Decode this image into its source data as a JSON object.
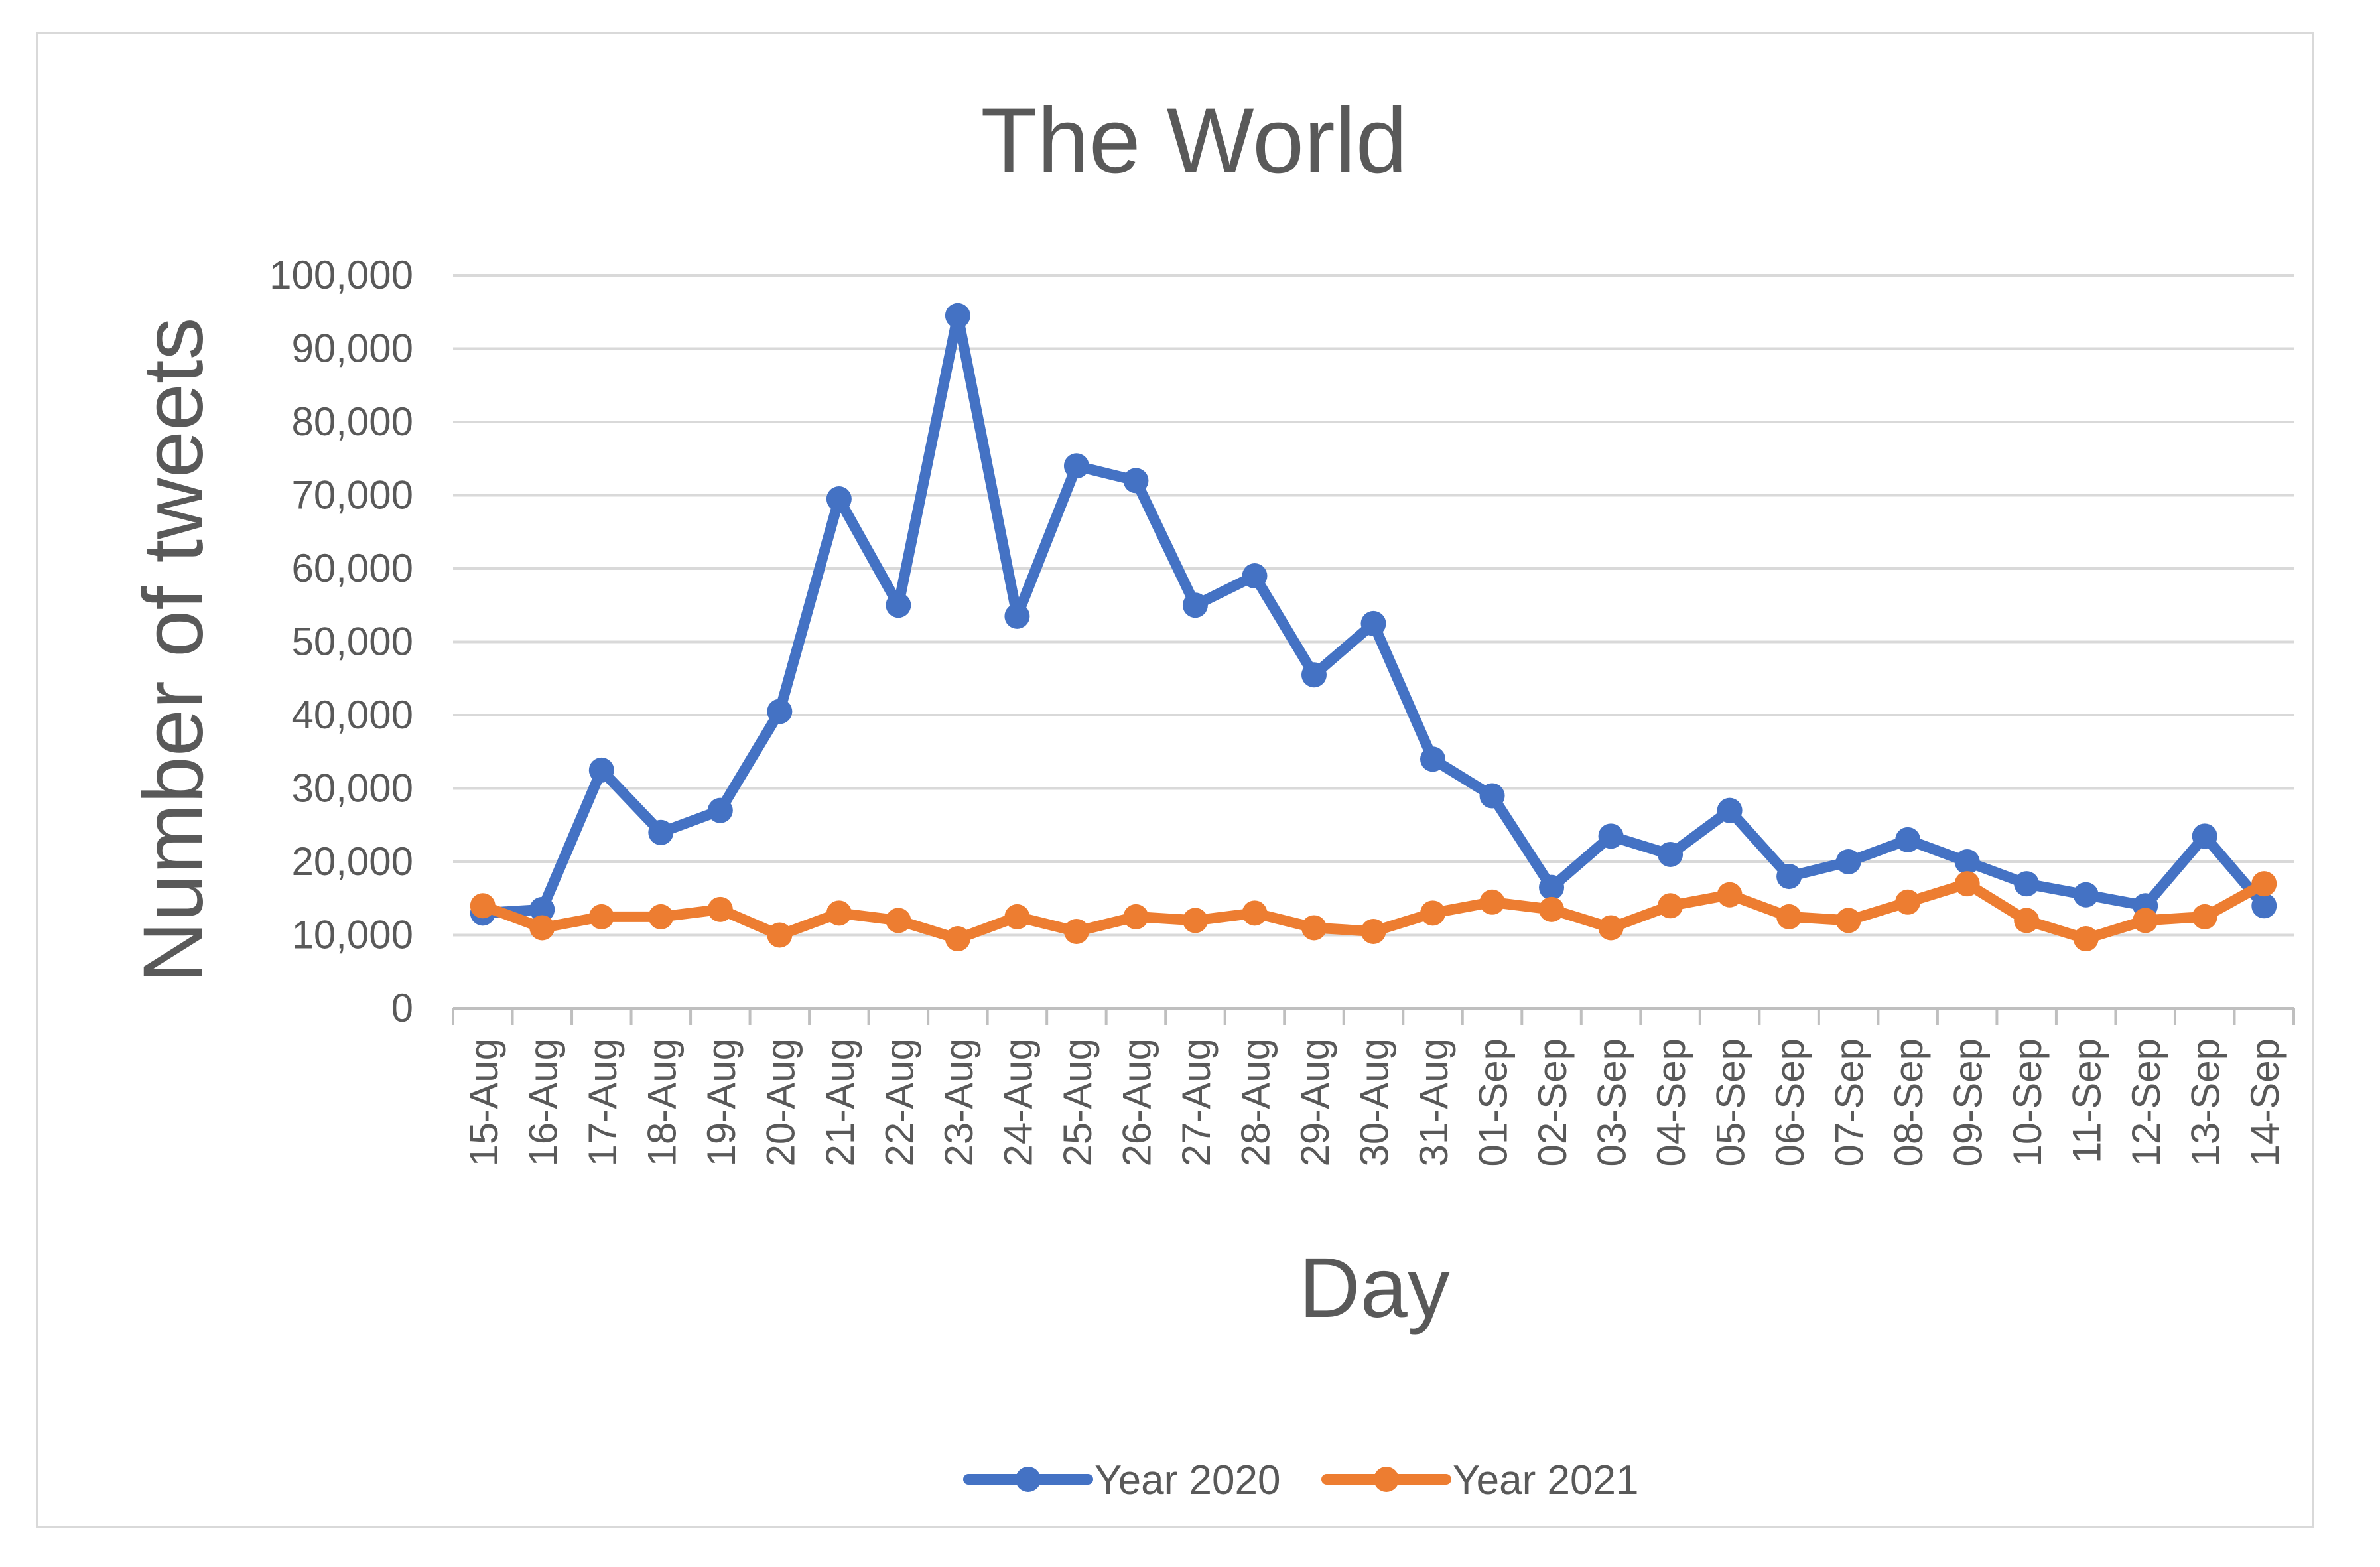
{
  "chart_data": {
    "type": "line",
    "title": "The  World",
    "xlabel": "Day",
    "ylabel": "Number of tweets",
    "ylim": [
      0,
      100000
    ],
    "yticks": [
      "0",
      "10,000",
      "20,000",
      "30,000",
      "40,000",
      "50,000",
      "60,000",
      "70,000",
      "80,000",
      "90,000",
      "100,000"
    ],
    "grid": true,
    "legend_position": "bottom",
    "categories": [
      "15-Aug",
      "16-Aug",
      "17-Aug",
      "18-Aug",
      "19-Aug",
      "20-Aug",
      "21-Aug",
      "22-Aug",
      "23-Aug",
      "24-Aug",
      "25-Aug",
      "26-Aug",
      "27-Aug",
      "28-Aug",
      "29-Aug",
      "30-Aug",
      "31-Aug",
      "01-Sep",
      "02-Sep",
      "03-Sep",
      "04-Sep",
      "05-Sep",
      "06-Sep",
      "07-Sep",
      "08-Sep",
      "09-Sep",
      "10-Sep",
      "11-Sep",
      "12-Sep",
      "13-Sep",
      "14-Sep"
    ],
    "series": [
      {
        "name": "Year 2020",
        "color": "#4472c4",
        "values": [
          13000,
          13500,
          32500,
          24000,
          27000,
          40500,
          69500,
          55000,
          94500,
          53500,
          74000,
          72000,
          55000,
          59000,
          45500,
          52500,
          34000,
          29000,
          16500,
          23500,
          21000,
          27000,
          18000,
          20000,
          23000,
          20000,
          17000,
          15500,
          14000,
          23500,
          14000
        ]
      },
      {
        "name": "Year 2021",
        "color": "#ed7d31",
        "values": [
          14000,
          11000,
          12500,
          12500,
          13500,
          10000,
          13000,
          12000,
          9500,
          12500,
          10500,
          12500,
          12000,
          13000,
          11000,
          10500,
          13000,
          14500,
          13500,
          11000,
          14000,
          15500,
          12500,
          12000,
          14500,
          17000,
          12000,
          9500,
          12000,
          12500,
          17000
        ]
      }
    ]
  }
}
